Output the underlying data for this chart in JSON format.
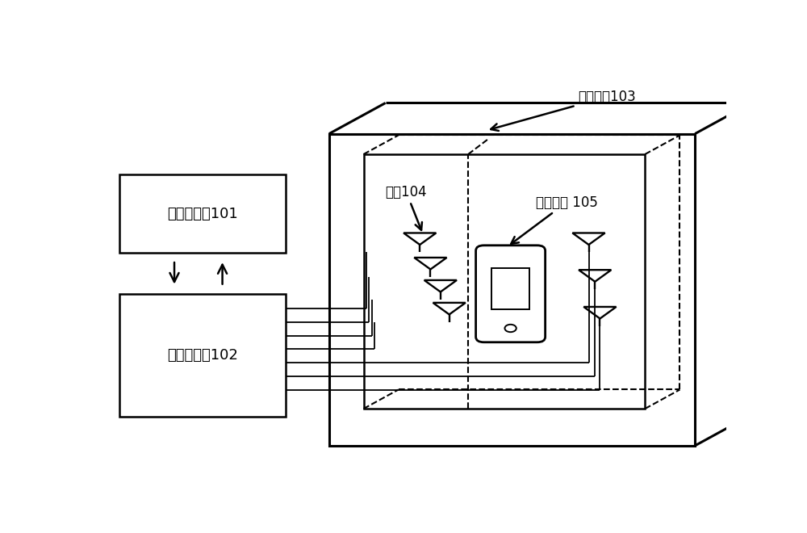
{
  "bg_color": "#ffffff",
  "line_color": "#000000",
  "label_101": "基站模拟器101",
  "label_102": "信道仿真仪102",
  "label_103": "消声暗室103",
  "label_104": "天线104",
  "label_105": "手机终端 105",
  "font_size_label": 13,
  "font_size_annot": 12
}
